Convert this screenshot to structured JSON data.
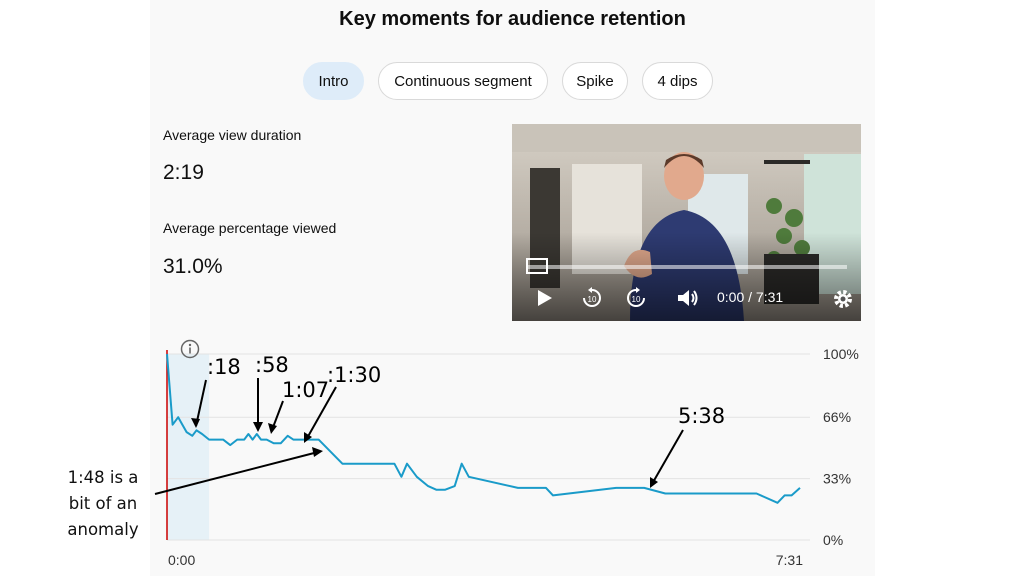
{
  "title": "Key moments for audience retention",
  "chips": [
    {
      "label": "Intro",
      "active": true
    },
    {
      "label": "Continuous segment",
      "active": false
    },
    {
      "label": "Spike",
      "active": false
    },
    {
      "label": "4 dips",
      "active": false
    }
  ],
  "stats": {
    "avg_duration_label": "Average view duration",
    "avg_duration_value": "2:19",
    "avg_percent_label": "Average percentage viewed",
    "avg_percent_value": "31.0%"
  },
  "video": {
    "time_display": "0:00 / 7:31",
    "skip_back_label": "10",
    "skip_forward_label": "10",
    "progress": 0.0
  },
  "chart_data": {
    "type": "line",
    "x_start_label": "0:00",
    "x_end_label": "7:31",
    "x_range_seconds": [
      0,
      451
    ],
    "ylim": [
      0,
      100
    ],
    "y_ticks": [
      "100%",
      "66%",
      "33%",
      "0%"
    ],
    "grid": true,
    "highlight_segment_seconds": [
      0,
      30
    ],
    "info_icon": "info-icon",
    "colors": {
      "line": "#1a9bc9",
      "highlight": "#e6f1f7",
      "playhead": "#cc0000"
    },
    "series": [
      {
        "x": [
          0,
          4,
          8,
          11,
          14,
          18,
          21,
          25,
          30,
          35,
          40,
          45,
          50,
          55,
          58,
          61,
          64,
          67,
          71,
          76,
          81,
          86,
          90,
          95,
          100,
          108,
          125,
          150,
          162,
          167,
          171,
          178,
          186,
          192,
          198,
          205,
          210,
          215,
          250,
          265,
          270,
          275,
          320,
          340,
          355,
          360,
          366,
          380,
          420,
          435,
          440,
          445,
          451
        ],
        "y": [
          100,
          62,
          66,
          62,
          58,
          56,
          59,
          57,
          54,
          54,
          54,
          51,
          54,
          54,
          57,
          54,
          57,
          54,
          54,
          52,
          52,
          56,
          54,
          54,
          54,
          54,
          41,
          41,
          41,
          34,
          41,
          34,
          29,
          27,
          27,
          29,
          41,
          34,
          28,
          28,
          28,
          24,
          28,
          28,
          25,
          25,
          25,
          25,
          25,
          20,
          24,
          24,
          28
        ]
      }
    ],
    "annotations": [
      {
        "label": ":18",
        "x": 18
      },
      {
        "label": ":58",
        "x": 58
      },
      {
        "label": "1:07",
        "x": 67
      },
      {
        "label": ":1:30",
        "x": 90
      },
      {
        "label": "5:38",
        "x": 338
      },
      {
        "label": "1:48 is a bit of an anomaly",
        "x": 108
      }
    ]
  },
  "side_note": {
    "line1": "1:48 is a",
    "line2": "bit of an",
    "line3": "anomaly"
  }
}
